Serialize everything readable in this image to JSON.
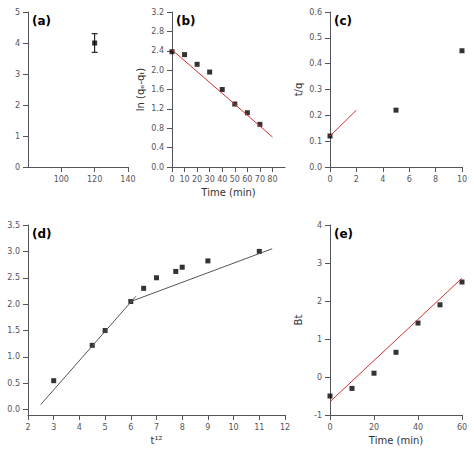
{
  "chart_data": [
    {
      "type": "scatter",
      "title": "(a)",
      "grid": false,
      "series": [
        {
          "type": "scatter",
          "x": [
            120
          ],
          "values": [
            4.0
          ],
          "error": [
            0.3
          ],
          "color": "black",
          "marker": "square"
        }
      ],
      "xlim": [
        80,
        140
      ],
      "xticks": [
        100,
        120,
        140
      ],
      "ylim": [
        0,
        5
      ],
      "yticks": [
        0,
        1,
        2,
        3,
        4,
        5
      ]
    },
    {
      "type": "scatter",
      "title": "(b)",
      "xlabel": "Time (min)",
      "ylabel": "ln (qₑ-qₜ)",
      "grid": false,
      "series": [
        {
          "type": "scatter",
          "x": [
            0,
            10,
            20,
            30,
            40,
            50,
            60,
            70
          ],
          "values": [
            2.38,
            2.32,
            2.12,
            1.96,
            1.6,
            1.3,
            1.12,
            0.88
          ],
          "color": "black",
          "marker": "square"
        },
        {
          "type": "line",
          "x": [
            0,
            80
          ],
          "values": [
            2.42,
            0.62
          ],
          "color": "#cc3333"
        }
      ],
      "xlim": [
        0,
        90
      ],
      "xticks": [
        0,
        10,
        20,
        30,
        40,
        50,
        60,
        70,
        80
      ],
      "ylim": [
        0.0,
        3.2
      ],
      "yticks": [
        {
          "value": 0.0,
          "label": "0.0"
        },
        0.4,
        0.8,
        1.2,
        1.6,
        {
          "value": 2.0,
          "label": "2.0"
        },
        2.4,
        2.8,
        3.2
      ]
    },
    {
      "type": "scatter",
      "title": "(c)",
      "ylabel": "t/q",
      "grid": false,
      "series": [
        {
          "type": "line",
          "x": [
            0,
            2
          ],
          "values": [
            0.12,
            0.22
          ],
          "color": "#cc3333"
        },
        {
          "type": "scatter",
          "x": [
            0,
            5,
            10
          ],
          "values": [
            0.12,
            0.22,
            0.45
          ],
          "color": "black",
          "marker": "square"
        }
      ],
      "xlim": [
        0,
        10
      ],
      "xticks": [
        0,
        2,
        4,
        6,
        8,
        10
      ],
      "ylim": [
        0.0,
        0.6
      ],
      "yticks": [
        {
          "value": 0.0,
          "label": "0.0"
        },
        0.1,
        0.2,
        0.3,
        0.4,
        0.5,
        0.6
      ]
    },
    {
      "type": "scatter",
      "title": "(d)",
      "xlabel": "t¹²",
      "grid": false,
      "series": [
        {
          "type": "scatter",
          "x": [
            3.0,
            4.5,
            5.0,
            6.0,
            6.5,
            7.0,
            7.75,
            8.0,
            9.0,
            11.0
          ],
          "values": [
            0.55,
            1.22,
            1.5,
            2.05,
            2.3,
            2.5,
            2.62,
            2.7,
            2.82,
            3.0
          ],
          "color": "black",
          "marker": "square"
        },
        {
          "type": "line",
          "x": [
            2.5,
            6.2
          ],
          "values": [
            0.1,
            2.15
          ],
          "color": "#555555"
        },
        {
          "type": "line",
          "x": [
            6.0,
            11.5
          ],
          "values": [
            2.05,
            3.05
          ],
          "color": "#555555"
        }
      ],
      "xlim": [
        2,
        12
      ],
      "xticks": [
        2,
        3,
        4,
        5,
        6,
        7,
        8,
        9,
        10,
        11,
        12
      ],
      "ylim": [
        -0.1,
        3.5
      ],
      "yticks": [
        {
          "value": 0.0,
          "label": "0.0"
        },
        0.5,
        {
          "value": 1.0,
          "label": "1.0"
        },
        1.5,
        {
          "value": 2.0,
          "label": "2.0"
        },
        2.5,
        {
          "value": 3.0,
          "label": "3.0"
        },
        3.5
      ]
    },
    {
      "type": "scatter",
      "title": "(e)",
      "xlabel": "Time (min)",
      "ylabel": "Bt",
      "grid": false,
      "series": [
        {
          "type": "scatter",
          "x": [
            0,
            10,
            20,
            30,
            40,
            50,
            60
          ],
          "values": [
            -0.5,
            -0.3,
            0.1,
            0.65,
            1.42,
            1.9,
            2.5
          ],
          "color": "black",
          "marker": "square"
        },
        {
          "type": "line",
          "x": [
            0,
            60
          ],
          "values": [
            -0.65,
            2.6
          ],
          "color": "#cc3333"
        }
      ],
      "xlim": [
        0,
        60
      ],
      "xticks": [
        0,
        20,
        40,
        60
      ],
      "ylim": [
        -1,
        4
      ],
      "yticks": [
        -1,
        0,
        1,
        2,
        3,
        4
      ]
    }
  ]
}
